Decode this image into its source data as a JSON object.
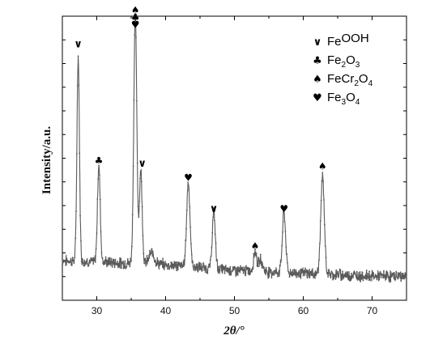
{
  "chart_data": {
    "type": "line",
    "xlabel": "2θ/°",
    "ylabel": "Intensity/a.u.",
    "xlim": [
      25,
      75
    ],
    "ylim": [
      0,
      100
    ],
    "xticks": [
      30,
      40,
      50,
      60,
      70
    ],
    "yticks_shown": false,
    "grid": false,
    "legend_position": "top-right",
    "legend": [
      {
        "marker": "v-check",
        "parts": [
          [
            "Fe",
            ""
          ],
          [
            "OOH",
            ""
          ]
        ]
      },
      {
        "marker": "club",
        "parts": [
          [
            "Fe",
            ""
          ],
          [
            "2",
            "sub"
          ],
          [
            "O",
            ""
          ],
          [
            "3",
            "sub"
          ]
        ]
      },
      {
        "marker": "spade",
        "parts": [
          [
            "FeCr",
            ""
          ],
          [
            "2",
            "sub"
          ],
          [
            "O",
            ""
          ],
          [
            "4",
            "sub"
          ]
        ]
      },
      {
        "marker": "heart",
        "parts": [
          [
            "Fe",
            ""
          ],
          [
            "3",
            "sub"
          ],
          [
            "O",
            ""
          ],
          [
            "4",
            "sub"
          ]
        ]
      }
    ],
    "series": [
      {
        "color": "#5a5a5a",
        "baseline": [
          [
            25,
            14
          ],
          [
            30,
            13.5
          ],
          [
            35,
            13
          ],
          [
            40,
            12.5
          ],
          [
            45,
            11.5
          ],
          [
            50,
            10.5
          ],
          [
            55,
            10
          ],
          [
            60,
            9.5
          ],
          [
            65,
            9
          ],
          [
            70,
            8.5
          ],
          [
            75,
            8.5
          ]
        ],
        "peaks": [
          {
            "x": 27.3,
            "height": 72,
            "width": 0.18
          },
          {
            "x": 30.3,
            "height": 34,
            "width": 0.2
          },
          {
            "x": 35.6,
            "height": 87,
            "width": 0.22
          },
          {
            "x": 36.4,
            "height": 33,
            "width": 0.2
          },
          {
            "x": 38.0,
            "height": 4,
            "width": 0.4
          },
          {
            "x": 43.3,
            "height": 30,
            "width": 0.24
          },
          {
            "x": 47.0,
            "height": 20,
            "width": 0.22
          },
          {
            "x": 53.0,
            "height": 7,
            "width": 0.22
          },
          {
            "x": 53.8,
            "height": 4,
            "width": 0.3
          },
          {
            "x": 57.2,
            "height": 21,
            "width": 0.24
          },
          {
            "x": 62.8,
            "height": 34,
            "width": 0.26
          }
        ]
      }
    ],
    "peak_markers": [
      {
        "x": 27.3,
        "y": 89,
        "symbols": [
          "v-check"
        ]
      },
      {
        "x": 30.3,
        "y": 48,
        "symbols": [
          "club"
        ]
      },
      {
        "x": 35.6,
        "y": 101,
        "symbols": [
          "spade",
          "club",
          "heart"
        ]
      },
      {
        "x": 36.6,
        "y": 47,
        "symbols": [
          "v-check"
        ]
      },
      {
        "x": 43.3,
        "y": 42,
        "symbols": [
          "heart"
        ]
      },
      {
        "x": 47.0,
        "y": 31,
        "symbols": [
          "v-check"
        ]
      },
      {
        "x": 53.0,
        "y": 18,
        "symbols": [
          "spade"
        ]
      },
      {
        "x": 57.2,
        "y": 31,
        "symbols": [
          "heart"
        ]
      },
      {
        "x": 62.8,
        "y": 46,
        "symbols": [
          "spade"
        ]
      }
    ]
  }
}
